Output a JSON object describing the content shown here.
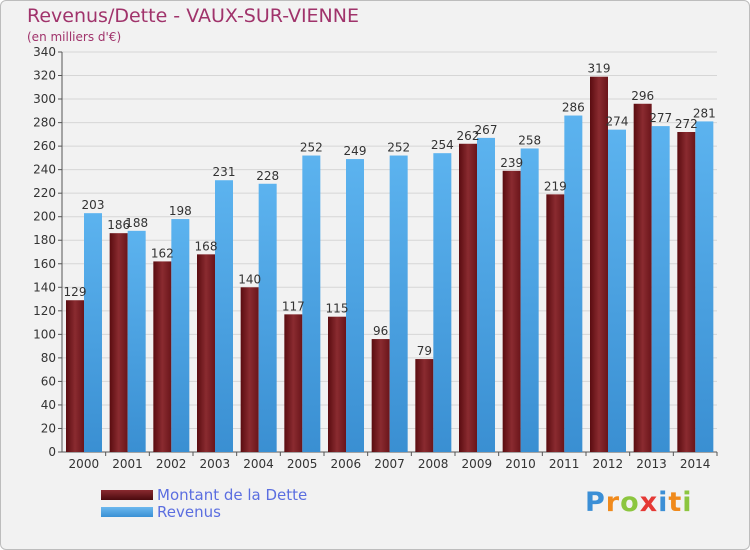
{
  "title": "Revenus/Dette - VAUX-SUR-VIENNE",
  "subtitle": "(en milliers d'€)",
  "colors": {
    "title": "#a0336b",
    "dette": "#7a1f24",
    "revenus": "#4aa3e4",
    "legend_text": "#5b6ee0"
  },
  "legend": [
    {
      "label": "Montant de la Dette",
      "color": "#6b1318"
    },
    {
      "label": "Revenus",
      "color": "#4aa3e4"
    }
  ],
  "logo": {
    "letters": [
      "P",
      "r",
      "o",
      "x",
      "i",
      "t",
      "i"
    ],
    "colors": [
      "#3b8fd6",
      "#f08a1c",
      "#8cc63f",
      "#e53935",
      "#3b8fd6",
      "#f08a1c",
      "#8cc63f"
    ]
  },
  "chart_data": {
    "type": "bar",
    "categories": [
      "2000",
      "2001",
      "2002",
      "2003",
      "2004",
      "2005",
      "2006",
      "2007",
      "2008",
      "2009",
      "2010",
      "2011",
      "2012",
      "2013",
      "2014"
    ],
    "series": [
      {
        "name": "Montant de la Dette",
        "values": [
          129,
          186,
          162,
          168,
          140,
          117,
          115,
          96,
          79,
          262,
          239,
          219,
          319,
          296,
          272
        ]
      },
      {
        "name": "Revenus",
        "values": [
          203,
          188,
          198,
          231,
          228,
          252,
          249,
          252,
          254,
          267,
          258,
          286,
          274,
          277,
          281
        ]
      }
    ],
    "title": "Revenus/Dette - VAUX-SUR-VIENNE",
    "ylabel": "(en milliers d'€)",
    "ylim": [
      0,
      340
    ],
    "yticks": [
      0,
      20,
      40,
      60,
      80,
      100,
      120,
      140,
      160,
      180,
      200,
      220,
      240,
      260,
      280,
      300,
      320,
      340
    ],
    "grid": true,
    "legend_position": "bottom-left"
  }
}
